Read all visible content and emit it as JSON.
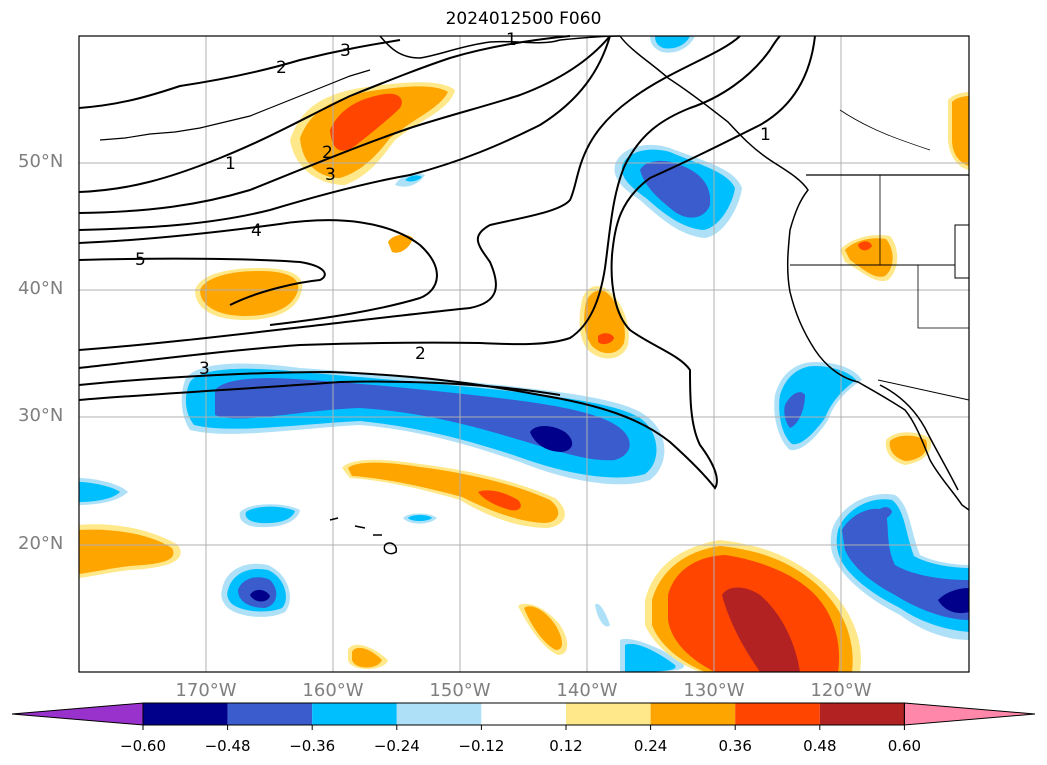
{
  "title": "2024012500 F060",
  "lat_labels": [
    "50°N",
    "40°N",
    "30°N",
    "20°N"
  ],
  "lon_labels": [
    "170°W",
    "160°W",
    "150°W",
    "140°W",
    "130°W",
    "120°W"
  ],
  "colorbar": {
    "tick_labels": [
      "−0.60",
      "−0.48",
      "−0.36",
      "−0.24",
      "−0.12",
      "0.12",
      "0.24",
      "0.36",
      "0.48",
      "0.60"
    ],
    "colors": [
      "#9932cc",
      "#00008b",
      "#3a5ccc",
      "#00bfff",
      "#aee1f7",
      "#ffffff",
      "#ffe88a",
      "#ffa500",
      "#ff4500",
      "#b22222",
      "#ff88aa"
    ]
  },
  "contour_labels": [
    "1",
    "1",
    "2",
    "3",
    "4",
    "5",
    "2",
    "3",
    "1",
    "2",
    "3"
  ],
  "colors": {
    "land": "#ffffff",
    "coast": "#000000",
    "grid": "#b0b0b0"
  }
}
